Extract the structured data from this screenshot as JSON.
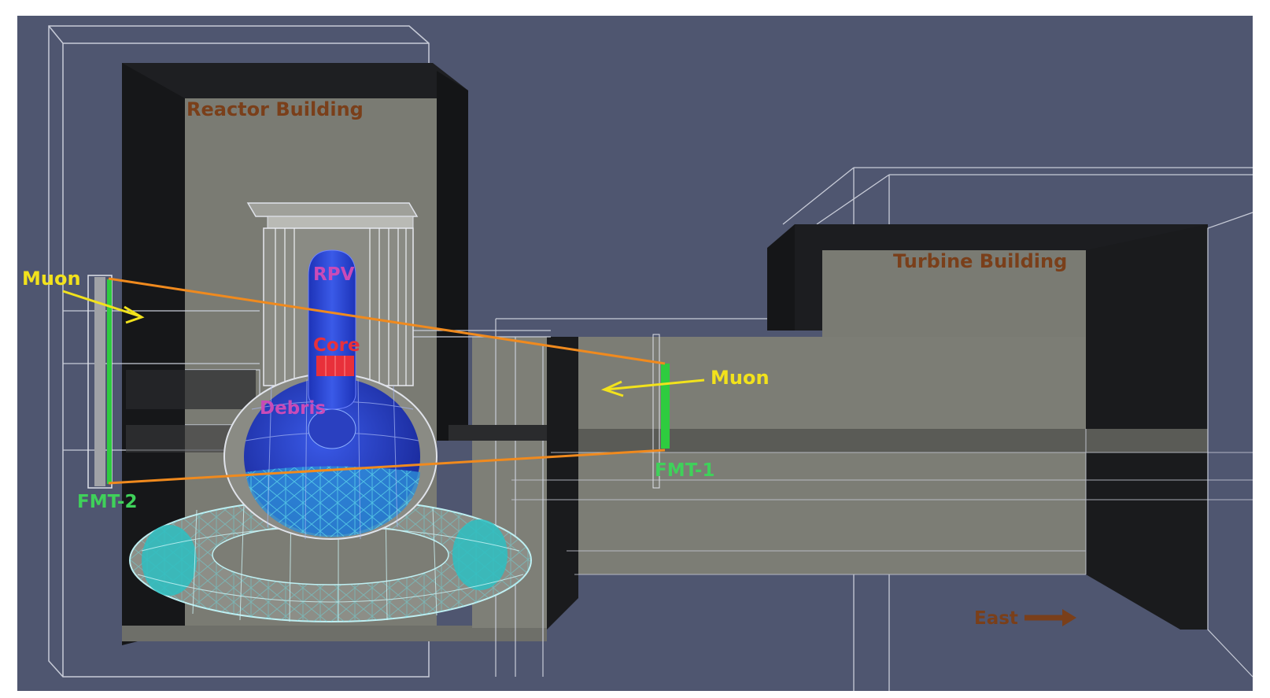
{
  "labels": {
    "reactor_building": "Reactor Building",
    "turbine_building": "Turbine Building",
    "rpv": "RPV",
    "core": "Core",
    "debris": "Debris",
    "muon_left": "Muon",
    "muon_right": "Muon",
    "fmt1": "FMT-1",
    "fmt2": "FMT-2",
    "east": "East"
  },
  "colors": {
    "background": "#4f5670",
    "building_label": "#7a3f1a",
    "muon_label": "#f2e21c",
    "detector_label": "#3fd15a",
    "rpv_label": "#c94bb8",
    "core_label": "#e8303a",
    "track": "#f08a1e",
    "vessel_blue": "#1f3cc8",
    "torus_cyan": "#35c6c6"
  },
  "icons": {
    "east_arrow": "arrow-right-icon",
    "muon_arrow": "arrow-icon"
  }
}
